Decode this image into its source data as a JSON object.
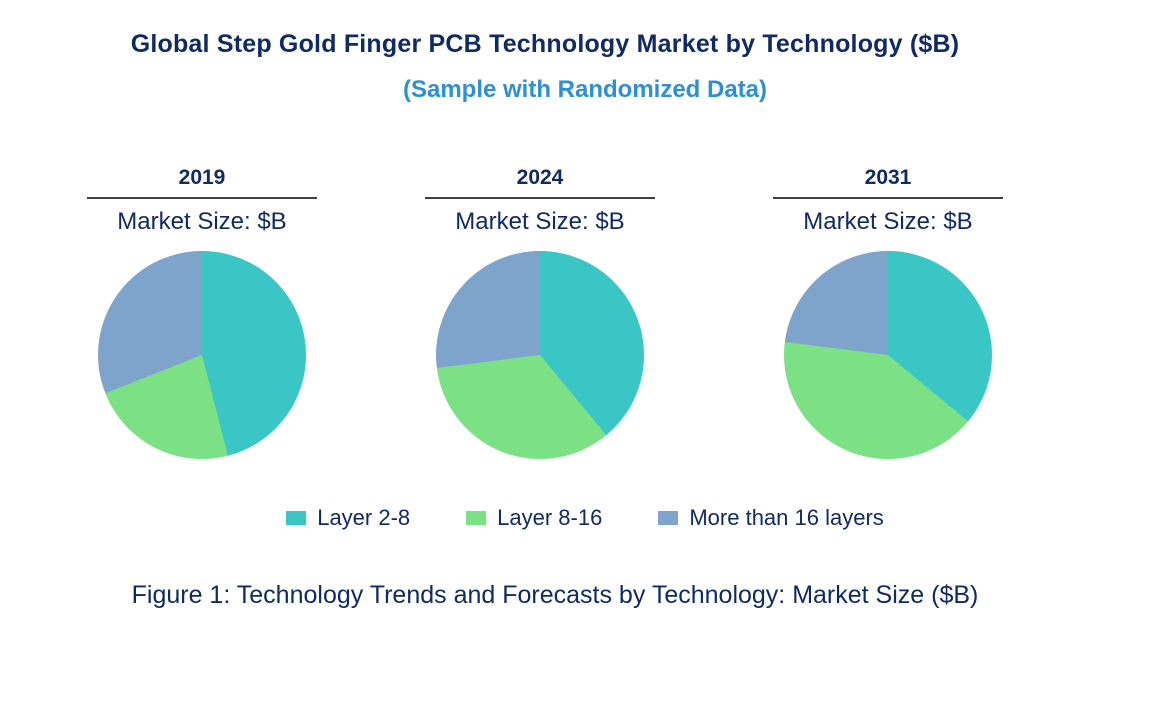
{
  "page": {
    "title": "Global Step Gold Finger PCB Technology Market by Technology ($B)",
    "subtitle": "(Sample with Randomized Data)",
    "caption": "Figure 1: Technology Trends and Forecasts by Technology: Market Size ($B)"
  },
  "colors": {
    "title_navy": "#102A63",
    "subtitle_blue": "#2D8FD5",
    "rule_gray": "#404040",
    "teal": "#3AC6C4",
    "green": "#7CE184",
    "blue_gray": "#7FA4CC"
  },
  "legend": {
    "items": [
      {
        "label": "Layer 2-8",
        "color": "#3AC6C4"
      },
      {
        "label": "Layer 8-16",
        "color": "#7CE184"
      },
      {
        "label": "More than 16 layers",
        "color": "#7FA4CC"
      }
    ]
  },
  "chart_data": [
    {
      "type": "pie",
      "title": "2019",
      "subtitle": "Market Size: $B",
      "categories": [
        "Layer 2-8",
        "Layer 8-16",
        "More than 16 layers"
      ],
      "values": [
        46,
        23,
        31
      ],
      "unit": "percent share (estimated from slice angles; no data labels shown)",
      "colors": [
        "#3AC6C4",
        "#7CE184",
        "#7FA4CC"
      ],
      "start_angle": "12 o'clock",
      "direction": "clockwise",
      "legend_position": "bottom shared"
    },
    {
      "type": "pie",
      "title": "2024",
      "subtitle": "Market Size: $B",
      "categories": [
        "Layer 2-8",
        "Layer 8-16",
        "More than 16 layers"
      ],
      "values": [
        39,
        34,
        27
      ],
      "unit": "percent share (estimated from slice angles; no data labels shown)",
      "colors": [
        "#3AC6C4",
        "#7CE184",
        "#7FA4CC"
      ],
      "start_angle": "12 o'clock",
      "direction": "clockwise",
      "legend_position": "bottom shared"
    },
    {
      "type": "pie",
      "title": "2031",
      "subtitle": "Market Size: $B",
      "categories": [
        "Layer 2-8",
        "Layer 8-16",
        "More than 16 layers"
      ],
      "values": [
        36,
        41,
        23
      ],
      "unit": "percent share (estimated from slice angles; no data labels shown)",
      "colors": [
        "#3AC6C4",
        "#7CE184",
        "#7FA4CC"
      ],
      "start_angle": "12 o'clock",
      "direction": "clockwise",
      "legend_position": "bottom shared"
    }
  ]
}
